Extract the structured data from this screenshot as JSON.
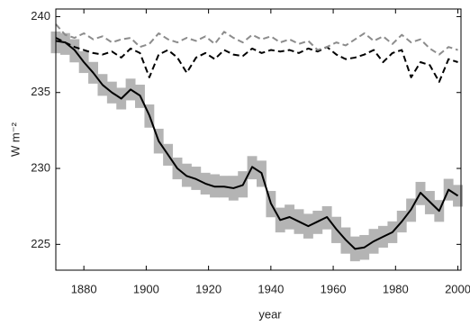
{
  "chart_data": {
    "type": "line",
    "x_label": "year",
    "y_label": "W m⁻²",
    "xlim": [
      1871,
      2001
    ],
    "ylim": [
      223.3,
      240.5
    ],
    "xticks": [
      1880,
      1900,
      1920,
      1940,
      1960,
      1980,
      2000
    ],
    "yticks": [
      225,
      230,
      235,
      240
    ],
    "x": [
      1871,
      1874,
      1877,
      1880,
      1883,
      1886,
      1889,
      1892,
      1895,
      1898,
      1901,
      1904,
      1907,
      1910,
      1913,
      1916,
      1919,
      1922,
      1925,
      1928,
      1931,
      1934,
      1937,
      1940,
      1943,
      1946,
      1949,
      1952,
      1955,
      1958,
      1961,
      1964,
      1967,
      1970,
      1973,
      1976,
      1979,
      1982,
      1985,
      1988,
      1991,
      1994,
      1997,
      2000
    ],
    "series": [
      {
        "color": "#000000",
        "style": "solid",
        "band_color": "#b4b4b4",
        "values": [
          238.4,
          238.3,
          237.8,
          237.0,
          236.3,
          235.5,
          235.0,
          234.6,
          235.2,
          234.8,
          233.5,
          231.8,
          230.9,
          230.0,
          229.5,
          229.3,
          229.0,
          228.8,
          228.8,
          228.7,
          228.9,
          230.1,
          229.7,
          227.7,
          226.6,
          226.8,
          226.5,
          226.2,
          226.5,
          226.8,
          226.0,
          225.3,
          224.7,
          224.8,
          225.2,
          225.5,
          225.8,
          226.5,
          227.3,
          228.4,
          227.8,
          227.2,
          228.6,
          228.2
        ],
        "lower": [
          237.6,
          237.5,
          237.0,
          236.3,
          235.6,
          234.8,
          234.3,
          233.9,
          234.5,
          234.0,
          232.7,
          231.0,
          230.2,
          229.3,
          228.8,
          228.6,
          228.3,
          228.1,
          228.1,
          227.9,
          228.1,
          229.3,
          228.8,
          226.8,
          225.8,
          226.0,
          225.7,
          225.4,
          225.7,
          226.0,
          225.1,
          224.4,
          223.9,
          224.0,
          224.4,
          224.8,
          225.1,
          225.8,
          226.5,
          227.6,
          227.0,
          226.5,
          227.9,
          227.5
        ],
        "upper": [
          239.0,
          238.9,
          238.5,
          237.7,
          237.0,
          236.2,
          235.7,
          235.3,
          235.9,
          235.5,
          234.2,
          232.6,
          231.6,
          230.7,
          230.3,
          230.1,
          229.7,
          229.6,
          229.5,
          229.5,
          229.8,
          230.8,
          230.5,
          228.5,
          227.4,
          227.6,
          227.3,
          227.0,
          227.2,
          227.5,
          226.8,
          226.1,
          225.5,
          225.6,
          226.0,
          226.2,
          226.5,
          227.2,
          228.0,
          229.1,
          228.5,
          227.9,
          229.3,
          228.9
        ]
      },
      {
        "color": "#000000",
        "style": "dashed",
        "values": [
          238.6,
          238.3,
          238.0,
          237.8,
          237.6,
          237.5,
          237.7,
          237.3,
          237.9,
          237.6,
          236.0,
          237.5,
          237.8,
          237.3,
          236.3,
          237.3,
          237.6,
          237.2,
          237.8,
          237.5,
          237.4,
          237.9,
          237.6,
          237.8,
          237.7,
          237.8,
          237.6,
          237.9,
          237.7,
          238.0,
          237.5,
          237.2,
          237.3,
          237.5,
          237.8,
          237.0,
          237.6,
          237.8,
          236.0,
          237.0,
          236.8,
          235.7,
          237.2,
          237.0
        ]
      },
      {
        "color": "#8c8c8c",
        "style": "dashed",
        "values": [
          239.5,
          238.8,
          238.6,
          238.9,
          238.5,
          238.7,
          238.3,
          238.5,
          238.6,
          238.0,
          238.2,
          238.9,
          238.5,
          238.3,
          238.6,
          238.4,
          238.7,
          238.2,
          239.0,
          238.6,
          238.3,
          238.8,
          238.5,
          238.7,
          238.3,
          238.5,
          238.2,
          238.4,
          237.8,
          238.0,
          238.3,
          238.1,
          238.5,
          238.9,
          238.4,
          238.7,
          238.2,
          238.8,
          238.3,
          238.5,
          237.9,
          237.5,
          238.0,
          237.8
        ]
      }
    ]
  }
}
